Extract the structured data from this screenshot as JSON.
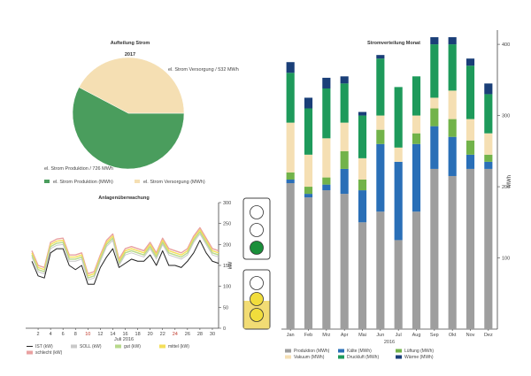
{
  "colors": {
    "pie_production": "#4a9d5d",
    "pie_supply": "#f5dfb3",
    "production": "#9e9e9e",
    "vacuum": "#f5dfb3",
    "cold": "#2a6fb7",
    "compressed_air": "#1e9a5b",
    "ventilation": "#72b34a",
    "heat": "#1a3f78",
    "ist": "#222222",
    "soll": "#c9c9c9",
    "schlecht": "#e9a1a1",
    "gut": "#b7d98b",
    "mittel": "#f4df5a",
    "light_green": "#1a8f3a",
    "light_yellow": "#f1dd3c",
    "light_panel_band": "#f2dc74"
  },
  "chart_data": [
    {
      "type": "pie",
      "title": "Aufteilung Strom",
      "subtitle": "2017",
      "slices": [
        {
          "name": "el. Strom Produktion (MWh)",
          "label": "el. Strom Produktion / 726 MWh",
          "value": 726
        },
        {
          "name": "el. Strom Versorgung (MWh)",
          "label": "el. Strom Versorgung / 532 MWh",
          "value": 532
        }
      ],
      "legend": [
        "el. Strom Produktion (MWh)",
        "el. Strom Versorgung (MWh)"
      ],
      "legend_position": "bottom"
    },
    {
      "type": "line",
      "title": "Anlagenüberwachung",
      "xlabel": "Juli 2016",
      "ylabel": "kW",
      "y_axis_side": "right",
      "ylim": [
        0,
        300
      ],
      "yticks": [
        0,
        50,
        100,
        150,
        200,
        250,
        300
      ],
      "xlim": [
        0,
        31
      ],
      "xticks": [
        "2",
        "4",
        "6",
        "8",
        "10",
        "12",
        "14",
        "16",
        "18",
        "20",
        "22",
        "24",
        "26",
        "28",
        "30"
      ],
      "xtick_red": [
        "10",
        "24"
      ],
      "x": [
        1,
        2,
        3,
        4,
        5,
        6,
        7,
        8,
        9,
        10,
        11,
        12,
        13,
        14,
        15,
        16,
        17,
        18,
        19,
        20,
        21,
        22,
        23,
        24,
        25,
        26,
        27,
        28,
        29,
        30,
        31
      ],
      "series": [
        {
          "name": "IST (kW)",
          "values": [
            160,
            125,
            120,
            180,
            190,
            190,
            150,
            140,
            150,
            105,
            105,
            145,
            170,
            190,
            145,
            155,
            165,
            160,
            160,
            175,
            150,
            185,
            150,
            150,
            145,
            160,
            180,
            210,
            180,
            160,
            155
          ]
        },
        {
          "name": "SOLL (kW)",
          "values": [
            170,
            135,
            130,
            190,
            198,
            200,
            160,
            160,
            165,
            115,
            120,
            160,
            195,
            210,
            150,
            175,
            180,
            175,
            170,
            190,
            165,
            200,
            175,
            170,
            165,
            175,
            205,
            225,
            200,
            175,
            170
          ]
        },
        {
          "name": "schlecht (kW)",
          "values": [
            185,
            150,
            145,
            205,
            213,
            215,
            175,
            175,
            180,
            130,
            135,
            175,
            210,
            225,
            165,
            190,
            195,
            190,
            185,
            205,
            180,
            215,
            190,
            185,
            180,
            190,
            220,
            240,
            215,
            190,
            185
          ]
        },
        {
          "name": "gut (kW)",
          "values": [
            175,
            140,
            135,
            195,
            203,
            205,
            165,
            165,
            170,
            120,
            125,
            165,
            200,
            215,
            155,
            180,
            185,
            180,
            175,
            195,
            170,
            205,
            180,
            175,
            170,
            180,
            210,
            230,
            205,
            180,
            175
          ]
        },
        {
          "name": "mittel (kW)",
          "values": [
            180,
            145,
            140,
            200,
            208,
            210,
            170,
            170,
            175,
            125,
            130,
            170,
            205,
            220,
            160,
            185,
            190,
            185,
            180,
            200,
            175,
            210,
            185,
            180,
            175,
            185,
            215,
            235,
            210,
            185,
            180
          ]
        }
      ],
      "legend_position": "bottom"
    },
    {
      "type": "bar",
      "stacked": true,
      "title": "Stromverteilung Monat",
      "xlabel": "2016",
      "ylabel": "MWh",
      "y_axis_side": "right",
      "ylim": [
        0,
        420
      ],
      "yticks": [
        100,
        200,
        300,
        400
      ],
      "categories": [
        "Jan",
        "Feb",
        "Mrz",
        "Apr",
        "Mai",
        "Jun",
        "Jul",
        "Aug",
        "Sep",
        "Okt",
        "Nov",
        "Dez"
      ],
      "series": [
        {
          "name": "Produktion (MWh)",
          "values": [
            205,
            185,
            195,
            190,
            150,
            165,
            125,
            165,
            225,
            215,
            225,
            225
          ]
        },
        {
          "name": "Kälte (MWh)",
          "values": [
            5,
            5,
            8,
            35,
            45,
            95,
            110,
            95,
            60,
            55,
            20,
            10
          ]
        },
        {
          "name": "Lüftung (MWh)",
          "values": [
            10,
            10,
            10,
            25,
            15,
            20,
            0,
            15,
            25,
            25,
            20,
            10
          ]
        },
        {
          "name": "Vakuum (MWh)",
          "values": [
            70,
            45,
            55,
            40,
            30,
            20,
            20,
            25,
            15,
            40,
            30,
            30
          ]
        },
        {
          "name": "Druckluft (MWh)",
          "values": [
            70,
            65,
            70,
            55,
            60,
            80,
            85,
            55,
            75,
            65,
            75,
            55
          ]
        },
        {
          "name": "Wärme (MWh)",
          "values": [
            15,
            15,
            15,
            10,
            5,
            5,
            0,
            0,
            10,
            10,
            10,
            15
          ]
        }
      ],
      "legend_position": "bottom"
    }
  ]
}
